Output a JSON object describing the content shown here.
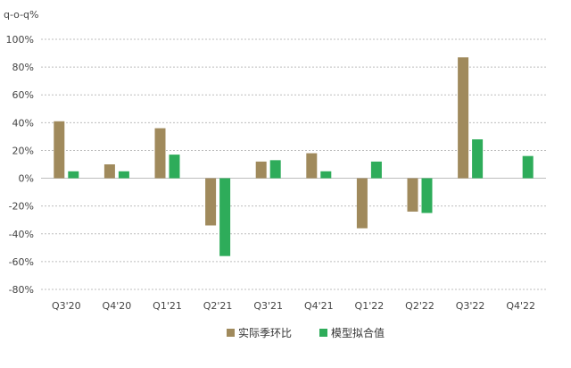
{
  "unit_label": "q-o-q%",
  "chart_data": {
    "type": "bar",
    "title": "",
    "xlabel": "",
    "ylabel": "q-o-q%",
    "categories": [
      "Q3'20",
      "Q4'20",
      "Q1'21",
      "Q2'21",
      "Q3'21",
      "Q4'21",
      "Q1'22",
      "Q2'22",
      "Q3'22",
      "Q4'22"
    ],
    "series": [
      {
        "name": "实际季环比",
        "color": "#a08a5c",
        "values": [
          41,
          10,
          36,
          -34,
          12,
          18,
          -36,
          -24,
          87,
          null
        ]
      },
      {
        "name": "模型拟合值",
        "color": "#2eac5a",
        "values": [
          5,
          5,
          17,
          -56,
          13,
          5,
          12,
          -25,
          28,
          16
        ]
      }
    ],
    "ylim": [
      -80,
      100
    ],
    "yticks": [
      -80,
      -60,
      -40,
      -20,
      0,
      20,
      40,
      60,
      80,
      100
    ],
    "ytick_labels": [
      "-80%",
      "-60%",
      "-40%",
      "-20%",
      "0%",
      "20%",
      "40%",
      "60%",
      "80%",
      "100%"
    ],
    "grid": true,
    "legend_position": "bottom"
  }
}
